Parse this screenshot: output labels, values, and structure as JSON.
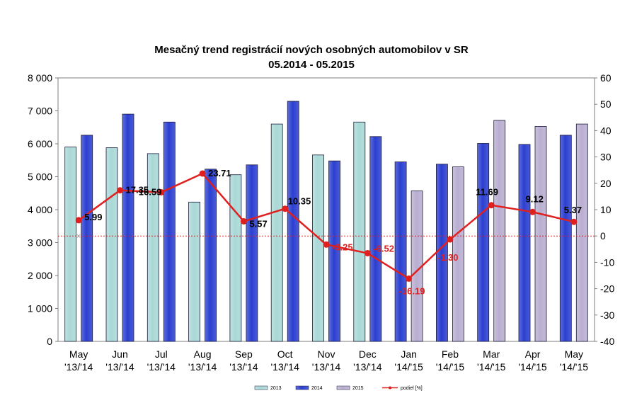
{
  "chart_data": {
    "type": "bar",
    "title": "Mesačný trend registrácií nových osobných automobilov v SR",
    "subtitle": "05.2014 - 05.2015",
    "categories": [
      [
        "May",
        "'13/'14"
      ],
      [
        "Jun",
        "'13/'14"
      ],
      [
        "Jul",
        "'13/'14"
      ],
      [
        "Aug",
        "'13/'14"
      ],
      [
        "Sep",
        "'13/'14"
      ],
      [
        "Oct",
        "'13/'14"
      ],
      [
        "Nov",
        "'13/'14"
      ],
      [
        "Dec",
        "'13/'14"
      ],
      [
        "Jan",
        "'14/'15"
      ],
      [
        "Feb",
        "'14/'15"
      ],
      [
        "Mar",
        "'14/'15"
      ],
      [
        "Apr",
        "'14/'15"
      ],
      [
        "May",
        "'14/'15"
      ]
    ],
    "ylim": [
      0,
      8000
    ],
    "y_ticks": [
      "0",
      "1 000",
      "2 000",
      "3 000",
      "4 000",
      "5 000",
      "6 000",
      "7 000",
      "8 000"
    ],
    "y2lim": [
      -40,
      60
    ],
    "y2_ticks": [
      "-40",
      "-30",
      "-20",
      "-10",
      "0",
      "10",
      "20",
      "30",
      "40",
      "50",
      "60"
    ],
    "grid": false,
    "legend_position": "bottom",
    "colors": {
      "2013": "#a9d8d6",
      "2014": "#2b3fd0",
      "2015": "#b9aed0",
      "podiel": "#e0201f",
      "frame": "#7f7f7f"
    },
    "series": [
      {
        "name": "2013",
        "kind": "bar",
        "values": [
          5900,
          5880,
          5700,
          4230,
          5060,
          6600,
          5660,
          6660,
          null,
          null,
          null,
          null,
          null
        ]
      },
      {
        "name": "2014",
        "kind": "bar",
        "values": [
          6260,
          6900,
          6660,
          5230,
          5360,
          7290,
          5480,
          6220,
          5450,
          5380,
          6010,
          5980,
          6260
        ]
      },
      {
        "name": "2015",
        "kind": "bar",
        "values": [
          null,
          null,
          null,
          null,
          null,
          null,
          null,
          null,
          4570,
          5300,
          6710,
          6530,
          6600
        ]
      },
      {
        "name": "podiel [%]",
        "kind": "line",
        "axis": "right",
        "values": [
          5.99,
          17.35,
          16.59,
          23.71,
          5.57,
          10.35,
          -3.25,
          -6.52,
          -16.19,
          -1.3,
          11.69,
          9.12,
          5.37
        ],
        "labels": [
          "5.99",
          "17.35",
          "16.59",
          "23.71",
          "5.57",
          "10.35",
          "-3.25",
          "-6.52",
          "-16.19",
          "-1.30",
          "11.69",
          "9.12",
          "5.37"
        ]
      }
    ]
  }
}
